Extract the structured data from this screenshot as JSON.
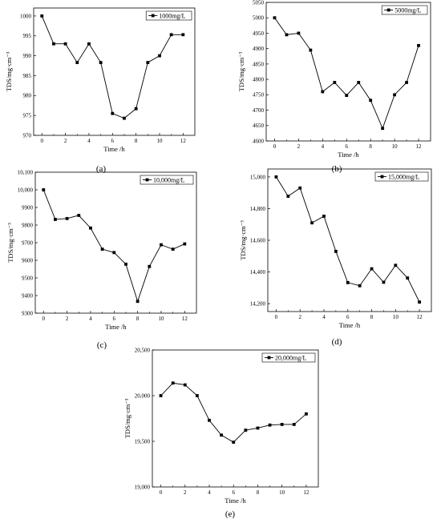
{
  "chart_data": [
    {
      "type": "line",
      "panel_label": "(a)",
      "xlabel": "Time /h",
      "ylabel": "TDS/mg·cm⁻³",
      "xlim": [
        -0.7,
        13
      ],
      "ylim": [
        970,
        1002
      ],
      "x_ticks": [
        0,
        2,
        4,
        6,
        8,
        10,
        12
      ],
      "y_ticks": [
        970,
        975,
        980,
        985,
        990,
        995,
        1000
      ],
      "y_tick_labels": [
        "970",
        "975",
        "980",
        "985",
        "990",
        "995",
        "1000"
      ],
      "legend_position": "top-right",
      "series": [
        {
          "name": "1000mg/L",
          "x": [
            0,
            1,
            2,
            3,
            4,
            5,
            6,
            7,
            8,
            9,
            10,
            11,
            12
          ],
          "values": [
            1000,
            993,
            993,
            988.3,
            993,
            988.3,
            975.5,
            974.3,
            976.7,
            988.3,
            990,
            995.3,
            995.3
          ]
        }
      ]
    },
    {
      "type": "line",
      "panel_label": "(b)",
      "xlabel": "Time /h",
      "ylabel": "TDS/mg·cm⁻³",
      "xlim": [
        -0.7,
        13
      ],
      "ylim": [
        4600,
        5050
      ],
      "x_ticks": [
        0,
        2,
        4,
        6,
        8,
        10,
        12
      ],
      "y_ticks": [
        4600,
        4650,
        4700,
        4750,
        4800,
        4850,
        4900,
        4950,
        5000,
        5050
      ],
      "y_tick_labels": [
        "4600",
        "4650",
        "4700",
        "4750",
        "4800",
        "4850",
        "4900",
        "4950",
        "5000",
        "5050"
      ],
      "legend_position": "top-right",
      "series": [
        {
          "name": "5000mg/L",
          "x": [
            0,
            1,
            2,
            3,
            4,
            5,
            6,
            7,
            8,
            9,
            10,
            11,
            12
          ],
          "values": [
            5000,
            4945,
            4950,
            4895,
            4760,
            4790,
            4748,
            4790,
            4732,
            4641,
            4750,
            4790,
            4910
          ]
        }
      ]
    },
    {
      "type": "line",
      "panel_label": "(c)",
      "xlabel": "Time /h",
      "ylabel": "TDS/mg·cm⁻³",
      "xlim": [
        -0.7,
        13
      ],
      "ylim": [
        9300,
        10100
      ],
      "x_ticks": [
        0,
        2,
        4,
        6,
        8,
        10,
        12
      ],
      "y_ticks": [
        9300,
        9400,
        9500,
        9600,
        9700,
        9800,
        9900,
        10000,
        10100
      ],
      "y_tick_labels": [
        "9300",
        "9400",
        "9500",
        "9600",
        "9700",
        "9800",
        "9900",
        "10,000",
        "10,100"
      ],
      "legend_position": "top-right",
      "series": [
        {
          "name": "10,000mg/L",
          "x": [
            0,
            1,
            2,
            3,
            4,
            5,
            6,
            7,
            8,
            9,
            10,
            11,
            12
          ],
          "values": [
            10000,
            9832,
            9837,
            9855,
            9783,
            9663,
            9644,
            9578,
            9367,
            9565,
            9688,
            9663,
            9693
          ]
        }
      ]
    },
    {
      "type": "line",
      "panel_label": "(d)",
      "xlabel": "Time /h",
      "ylabel": "TDS/mg·cm⁻³",
      "xlim": [
        -0.7,
        13
      ],
      "ylim": [
        14150,
        15050
      ],
      "x_ticks": [
        0,
        2,
        4,
        6,
        8,
        10,
        12
      ],
      "y_ticks": [
        14200,
        14400,
        14600,
        14800,
        15000
      ],
      "y_tick_labels": [
        "14,200",
        "14,400",
        "14,600",
        "14,800",
        "15,000"
      ],
      "legend_position": "top-right",
      "series": [
        {
          "name": "15,000mg/L",
          "x": [
            0,
            1,
            2,
            3,
            4,
            5,
            6,
            7,
            8,
            9,
            10,
            11,
            12
          ],
          "values": [
            15000,
            14878,
            14930,
            14710,
            14752,
            14530,
            14333,
            14313,
            14420,
            14335,
            14442,
            14362,
            14210
          ]
        }
      ]
    },
    {
      "type": "line",
      "panel_label": "(e)",
      "xlabel": "Time /h",
      "ylabel": "TDS/mg·cm⁻³",
      "xlim": [
        -0.7,
        13
      ],
      "ylim": [
        19000,
        20500
      ],
      "x_ticks": [
        0,
        2,
        4,
        6,
        8,
        10,
        12
      ],
      "y_ticks": [
        19000,
        19500,
        20000,
        20500
      ],
      "y_tick_labels": [
        "19,000",
        "19,500",
        "20,000",
        "20,500"
      ],
      "legend_position": "top-right",
      "series": [
        {
          "name": "20,000mg/L",
          "x": [
            0,
            1,
            2,
            3,
            4,
            5,
            6,
            7,
            8,
            9,
            10,
            11,
            12
          ],
          "values": [
            20000,
            20138,
            20118,
            20000,
            19730,
            19568,
            19490,
            19622,
            19645,
            19678,
            19685,
            19685,
            19800
          ]
        }
      ]
    }
  ]
}
